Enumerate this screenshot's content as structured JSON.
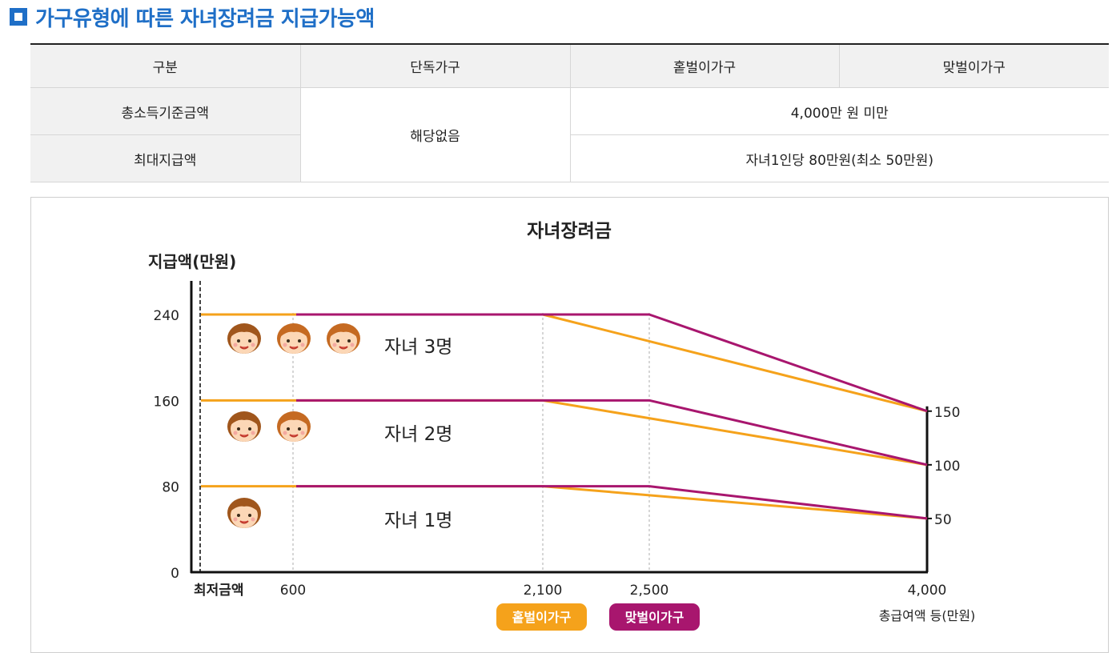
{
  "header": {
    "title": "가구유형에 따른 자녀장려금 지급가능액"
  },
  "table": {
    "columns": [
      "구분",
      "단독가구",
      "홑벌이가구",
      "맞벌이가구"
    ],
    "rows": [
      {
        "label": "총소득기준금액",
        "single": "해당없음",
        "value": "4,000만 원 미만"
      },
      {
        "label": "최대지급액",
        "value": "자녀1인당 80만원(최소 50만원)"
      }
    ]
  },
  "chart_data": {
    "type": "line",
    "title": "자녀장려금",
    "ylabel": "지급액(만원)",
    "xlabel": "총급여액 등(만원)",
    "x_ticks": [
      "최저금액",
      "600",
      "2,100",
      "2,500",
      "4,000"
    ],
    "y_ticks": [
      "0",
      "80",
      "160",
      "240"
    ],
    "right_ticks": [
      "150",
      "100",
      "50"
    ],
    "ylim": [
      0,
      240
    ],
    "legend": [
      "홑벌이가구",
      "맞벌이가구"
    ],
    "colors": {
      "single_earner": "#f5a21b",
      "dual_earner": "#a8166e"
    },
    "groups": [
      {
        "label": "자녀 3명",
        "children": 3,
        "series": [
          {
            "name": "홑벌이가구",
            "points": [
              [
                "최저금액",
                240
              ],
              [
                "2,100",
                240
              ],
              [
                "4,000",
                150
              ]
            ]
          },
          {
            "name": "맞벌이가구",
            "points": [
              [
                "600",
                240
              ],
              [
                "2,500",
                240
              ],
              [
                "4,000",
                150
              ]
            ]
          }
        ]
      },
      {
        "label": "자녀 2명",
        "children": 2,
        "series": [
          {
            "name": "홑벌이가구",
            "points": [
              [
                "최저금액",
                160
              ],
              [
                "2,100",
                160
              ],
              [
                "4,000",
                100
              ]
            ]
          },
          {
            "name": "맞벌이가구",
            "points": [
              [
                "600",
                160
              ],
              [
                "2,500",
                160
              ],
              [
                "4,000",
                100
              ]
            ]
          }
        ]
      },
      {
        "label": "자녀 1명",
        "children": 1,
        "series": [
          {
            "name": "홑벌이가구",
            "points": [
              [
                "최저금액",
                80
              ],
              [
                "2,100",
                80
              ],
              [
                "4,000",
                50
              ]
            ]
          },
          {
            "name": "맞벌이가구",
            "points": [
              [
                "600",
                80
              ],
              [
                "2,500",
                80
              ],
              [
                "4,000",
                50
              ]
            ]
          }
        ]
      }
    ]
  }
}
